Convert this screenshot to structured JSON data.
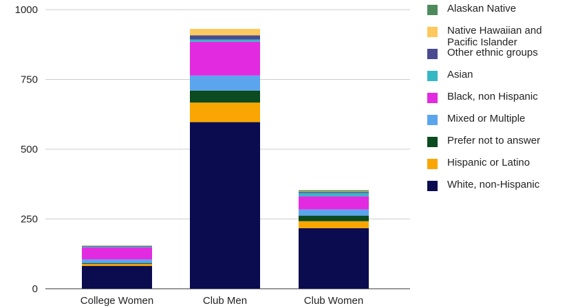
{
  "chart_data": {
    "type": "bar",
    "stacked": true,
    "categories": [
      "College Women",
      "Club Men",
      "Club Women"
    ],
    "ylim": [
      0,
      1000
    ],
    "yticks": [
      0,
      250,
      500,
      750,
      1000
    ],
    "grid": true,
    "legend_position": "right",
    "series": [
      {
        "name": "White, non-Hispanic",
        "color": "#0b0b4f",
        "values": [
          82,
          597,
          217
        ]
      },
      {
        "name": "Hispanic or Latino",
        "color": "#f9a602",
        "values": [
          7,
          70,
          25
        ]
      },
      {
        "name": "Prefer not to answer",
        "color": "#0c4a1f",
        "values": [
          3,
          43,
          20
        ]
      },
      {
        "name": "Mixed or Multiple",
        "color": "#5ba4ee",
        "values": [
          13,
          54,
          22
        ]
      },
      {
        "name": "Black, non Hispanic",
        "color": "#e22be0",
        "values": [
          43,
          121,
          47
        ]
      },
      {
        "name": "Asian",
        "color": "#36b8c4",
        "values": [
          3,
          8,
          12
        ]
      },
      {
        "name": "Other ethnic groups",
        "color": "#4a4a90",
        "values": [
          2,
          15,
          4
        ]
      },
      {
        "name": "Native Hawaiian and Pacific Islander",
        "color": "#fcc95c",
        "values": [
          1,
          23,
          2
        ]
      },
      {
        "name": "Alaskan Native",
        "color": "#4e8a5c",
        "values": [
          1,
          0,
          4
        ]
      }
    ],
    "legend_order": [
      8,
      7,
      6,
      5,
      4,
      3,
      2,
      1,
      0
    ]
  }
}
